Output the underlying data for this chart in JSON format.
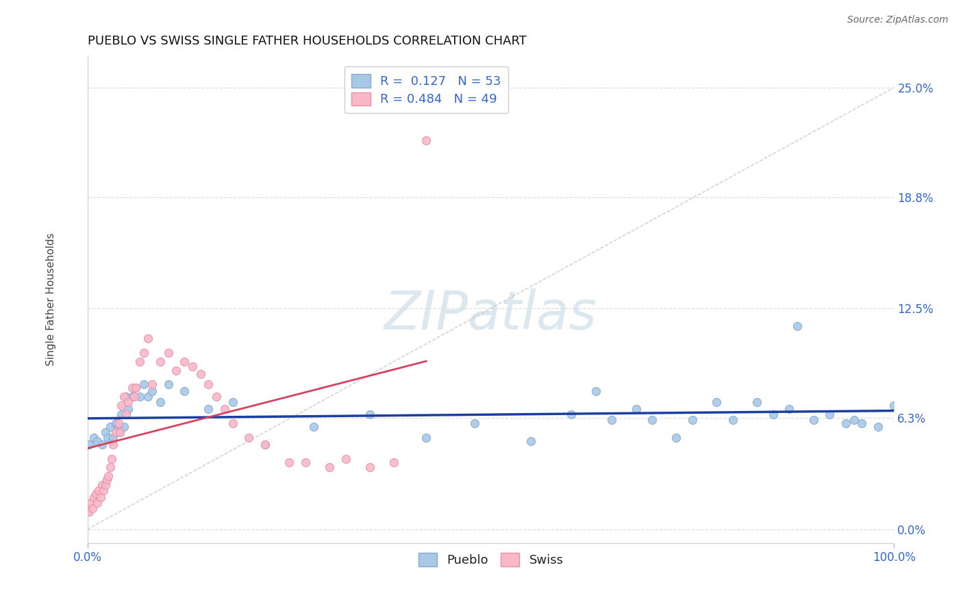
{
  "title": "PUEBLO VS SWISS SINGLE FATHER HOUSEHOLDS CORRELATION CHART",
  "source": "Source: ZipAtlas.com",
  "ylabel": "Single Father Households",
  "xlim": [
    0,
    1
  ],
  "ylim": [
    -0.008,
    0.268
  ],
  "yticks": [
    0.0,
    0.063,
    0.125,
    0.188,
    0.25
  ],
  "ytick_labels": [
    "0.0%",
    "6.3%",
    "12.5%",
    "18.8%",
    "25.0%"
  ],
  "xtick_labels": [
    "0.0%",
    "100.0%"
  ],
  "legend_pueblo_R": "0.127",
  "legend_pueblo_N": "53",
  "legend_swiss_R": "0.484",
  "legend_swiss_N": "49",
  "pueblo_color": "#a8c8e8",
  "swiss_color": "#f8b8c8",
  "pueblo_edge_color": "#88aacc",
  "swiss_edge_color": "#e890a8",
  "pueblo_line_color": "#1a3fa0",
  "swiss_line_color": "#d84060",
  "ref_line_color": "#c0c0c0",
  "grid_color": "#dddddd",
  "background_color": "#ffffff",
  "title_color": "#111111",
  "source_color": "#666666",
  "tick_color": "#3366cc",
  "ylabel_color": "#444444",
  "watermark_color": "#dce8f0",
  "pueblo_x": [
    0.002,
    0.008,
    0.012,
    0.018,
    0.022,
    0.025,
    0.028,
    0.03,
    0.032,
    0.035,
    0.038,
    0.04,
    0.042,
    0.045,
    0.048,
    0.05,
    0.055,
    0.06,
    0.065,
    0.07,
    0.075,
    0.08,
    0.09,
    0.1,
    0.12,
    0.15,
    0.18,
    0.22,
    0.28,
    0.35,
    0.42,
    0.48,
    0.55,
    0.6,
    0.63,
    0.65,
    0.68,
    0.7,
    0.73,
    0.75,
    0.78,
    0.8,
    0.83,
    0.85,
    0.87,
    0.88,
    0.9,
    0.92,
    0.94,
    0.95,
    0.96,
    0.98,
    1.0
  ],
  "pueblo_y": [
    0.048,
    0.052,
    0.05,
    0.048,
    0.055,
    0.052,
    0.058,
    0.05,
    0.052,
    0.06,
    0.058,
    0.055,
    0.065,
    0.058,
    0.075,
    0.068,
    0.075,
    0.08,
    0.075,
    0.082,
    0.075,
    0.078,
    0.072,
    0.082,
    0.078,
    0.068,
    0.072,
    0.048,
    0.058,
    0.065,
    0.052,
    0.06,
    0.05,
    0.065,
    0.078,
    0.062,
    0.068,
    0.062,
    0.052,
    0.062,
    0.072,
    0.062,
    0.072,
    0.065,
    0.068,
    0.115,
    0.062,
    0.065,
    0.06,
    0.062,
    0.06,
    0.058,
    0.07
  ],
  "swiss_x": [
    0.002,
    0.004,
    0.006,
    0.008,
    0.01,
    0.012,
    0.014,
    0.016,
    0.018,
    0.02,
    0.022,
    0.024,
    0.026,
    0.028,
    0.03,
    0.032,
    0.035,
    0.038,
    0.04,
    0.042,
    0.045,
    0.048,
    0.05,
    0.055,
    0.058,
    0.06,
    0.065,
    0.07,
    0.075,
    0.08,
    0.09,
    0.1,
    0.11,
    0.12,
    0.13,
    0.14,
    0.15,
    0.16,
    0.17,
    0.18,
    0.2,
    0.22,
    0.25,
    0.27,
    0.3,
    0.32,
    0.35,
    0.38,
    0.42
  ],
  "swiss_y": [
    0.01,
    0.015,
    0.012,
    0.018,
    0.02,
    0.015,
    0.022,
    0.018,
    0.025,
    0.022,
    0.025,
    0.028,
    0.03,
    0.035,
    0.04,
    0.048,
    0.055,
    0.06,
    0.055,
    0.07,
    0.075,
    0.065,
    0.072,
    0.08,
    0.075,
    0.08,
    0.095,
    0.1,
    0.108,
    0.082,
    0.095,
    0.1,
    0.09,
    0.095,
    0.092,
    0.088,
    0.082,
    0.075,
    0.068,
    0.06,
    0.052,
    0.048,
    0.038,
    0.038,
    0.035,
    0.04,
    0.035,
    0.038,
    0.22
  ]
}
